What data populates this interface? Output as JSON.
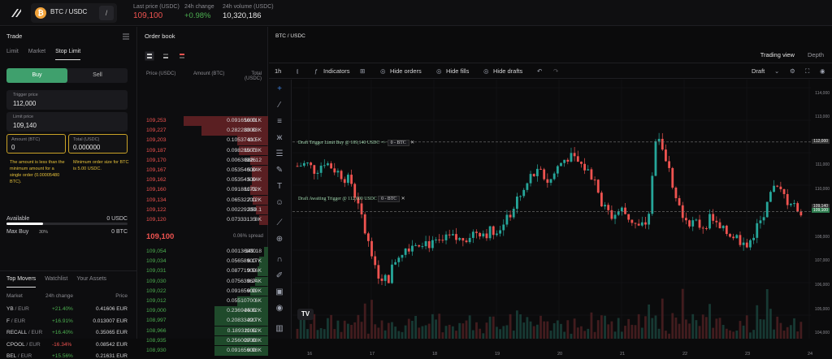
{
  "header": {
    "pair": "BTC / USDC",
    "coin_icon": "bitcoin-icon",
    "last_price_label": "Last price (USDC)",
    "last_price": "109,100",
    "change_label": "24h change",
    "change": "+0.98%",
    "volume_label": "24h volume (USDC)",
    "volume": "10,320,186"
  },
  "trade": {
    "title": "Trade",
    "tabs": [
      "Limit",
      "Market",
      "Stop Limit"
    ],
    "buy": "Buy",
    "sell": "Sell",
    "trigger_label": "Trigger price",
    "trigger_value": "112,000",
    "limit_label": "Limit price",
    "limit_value": "109,140",
    "amount_label": "Amount (BTC)",
    "amount_value": "0",
    "total_label": "Total (USDC)",
    "total_value": "0.000000",
    "warn1": "The amount is less than the minimum amount for a single order (0.00005480 BTC).",
    "warn2": "Minimum order size for BTC is 5.00 USDC.",
    "slider_label": "30%",
    "slider_pct": 30,
    "available_label": "Available",
    "available_value": "0 USDC",
    "maxbuy_label": "Max Buy",
    "maxbuy_value": "0 BTC"
  },
  "movers": {
    "tabs": [
      "Top Movers",
      "Watchlist",
      "Your Assets"
    ],
    "head": [
      "Market",
      "24h change",
      "Price"
    ],
    "rows": [
      {
        "a": "YB",
        "b": "/ EUR",
        "c": "+21.40%",
        "p": "0.41606 EUR",
        "up": true
      },
      {
        "a": "F",
        "b": "/ EUR",
        "c": "+16.91%",
        "p": "0.013007 EUR",
        "up": true
      },
      {
        "a": "RECALL",
        "b": "/ EUR",
        "c": "+16.40%",
        "p": "0.35065 EUR",
        "up": true
      },
      {
        "a": "CPOOL",
        "b": "/ EUR",
        "c": "-16.34%",
        "p": "0.08542 EUR",
        "up": false
      },
      {
        "a": "BEL",
        "b": "/ EUR",
        "c": "+15.56%",
        "p": "0.21631 EUR",
        "up": true
      }
    ]
  },
  "orderbook": {
    "title": "Order book",
    "col_price": "Price (USDC)",
    "col_amount": "Amount (BTC)",
    "col_total": "Total (USDC)",
    "mid": "109,100",
    "spread": "0.06% spread",
    "asks": [
      [
        "109,253",
        "0.09165600",
        "10.01K",
        0.95
      ],
      [
        "109,227",
        "0.28228300",
        "30.83K",
        0.75
      ],
      [
        "109,203",
        "0.10537400",
        "11.5K",
        0.35
      ],
      [
        "109,187",
        "0.09828500",
        "10.73K",
        0.33
      ],
      [
        "109,170",
        "0.00630326",
        "688.12",
        0.2
      ],
      [
        "109,167",
        "0.05354000",
        "5.84K",
        0.18
      ],
      [
        "109,162",
        "0.05354300",
        "5.84K",
        0.18
      ],
      [
        "109,160",
        "0.09188173",
        "10.02K",
        0.2
      ],
      [
        "109,134",
        "0.06532200",
        "7.12K",
        0.17
      ],
      [
        "109,122",
        "0.00229200",
        "250.1",
        0.14
      ],
      [
        "109,120",
        "0.07333135",
        "8K",
        0.1
      ]
    ],
    "bids": [
      [
        "109,054",
        "0.00136800",
        "149.18",
        0.05
      ],
      [
        "109,034",
        "0.05658900",
        "6.17K",
        0.1
      ],
      [
        "109,031",
        "0.08771900",
        "9.56K",
        0.12
      ],
      [
        "109,030",
        "0.07563967",
        "8.24K",
        0.15
      ],
      [
        "109,022",
        "0.09165600",
        "9.99K",
        0.2
      ],
      [
        "109,012",
        "0.05510700",
        "6K",
        0.35
      ],
      [
        "109,000",
        "0.23694400",
        "25.82K",
        0.6
      ],
      [
        "108,997",
        "0.20833400",
        "22.7K",
        0.6
      ],
      [
        "108,966",
        "0.18931100",
        "20.62K",
        0.6
      ],
      [
        "108,935",
        "0.25600800",
        "27.88K",
        0.6
      ],
      [
        "108,930",
        "0.09165600",
        "9.98K",
        0.6
      ]
    ]
  },
  "chart": {
    "tab": "BTC / USDC",
    "views": [
      "Trading view",
      "Depth"
    ],
    "interval": "1h",
    "indicators": "Indicators",
    "hide_orders": "Hide orders",
    "hide_fills": "Hide fills",
    "hide_drafts": "Hide drafts",
    "draft": "Draft",
    "ann1": "Draft Trigger Limit Buy @ 109,140 USDC =>",
    "ann1_box": "0 - BTC",
    "ann2": "Draft Awaiting Trigger @ 112,000 USDC",
    "ann2_box": "0 - BTC",
    "yticks": [
      "114,000",
      "113,000",
      "112,000",
      "112,000",
      "111,000",
      "110,000",
      "109,140",
      "109,100",
      "108,000",
      "107,000",
      "106,000",
      "105,000",
      "104,000"
    ],
    "xticks": [
      "16",
      "17",
      "18",
      "19",
      "20",
      "21",
      "22",
      "23",
      "24"
    ]
  },
  "chart_data": {
    "type": "candlestick",
    "x": [
      "16",
      "17",
      "18",
      "19",
      "20",
      "21",
      "22",
      "23",
      "24"
    ],
    "ylim": [
      103800,
      114600
    ],
    "last": 109100,
    "trigger": 112000,
    "limit": 109140
  }
}
